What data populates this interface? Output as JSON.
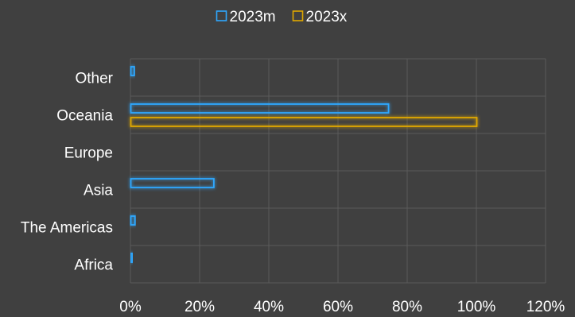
{
  "chart_data": {
    "type": "bar",
    "orientation": "horizontal",
    "categories": [
      "Africa",
      "The Americas",
      "Asia",
      "Europe",
      "Oceania",
      "Other"
    ],
    "series": [
      {
        "name": "2023m",
        "values": [
          0.3,
          1.2,
          24,
          0,
          74.5,
          1.0
        ]
      },
      {
        "name": "2023x",
        "values": [
          0,
          0,
          0,
          0,
          100,
          0
        ]
      }
    ],
    "xlim": [
      0,
      120
    ],
    "x_ticks": [
      "0%",
      "20%",
      "40%",
      "60%",
      "80%",
      "100%",
      "120%"
    ],
    "x_tick_values": [
      0,
      20,
      40,
      60,
      80,
      100,
      120
    ],
    "grid": true,
    "legend_position": "top",
    "colors": {
      "background": "#404040",
      "grid": "#5a5a5a",
      "text": "#ffffff",
      "series": [
        "#2fa8ff",
        "#e0a800"
      ],
      "glow": [
        "#1f7acc",
        "#8a9a1a"
      ]
    }
  }
}
